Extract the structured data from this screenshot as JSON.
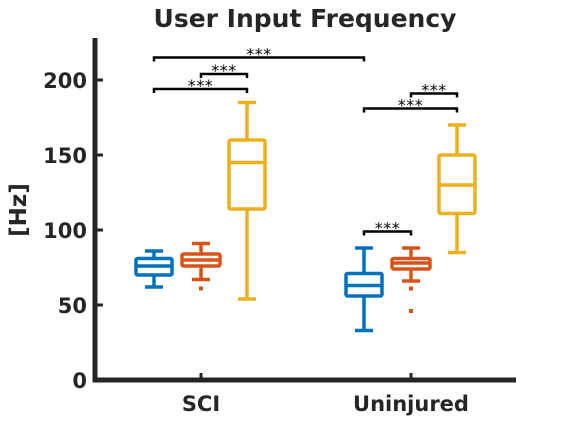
{
  "chart_data": {
    "type": "box",
    "title": "User Input Frequency",
    "xlabel": "",
    "ylabel": "[Hz]",
    "ylim": [
      0,
      228
    ],
    "yticks": [
      0,
      50,
      100,
      150,
      200
    ],
    "categories": [
      "SCI",
      "Uninjured"
    ],
    "series_colors": [
      "#0072BD",
      "#D95319",
      "#EDB120"
    ],
    "groups": [
      {
        "category": "SCI",
        "boxes": [
          {
            "min": 62,
            "q1": 70,
            "median": 76,
            "q3": 81,
            "max": 86,
            "outliers": []
          },
          {
            "min": 67,
            "q1": 76,
            "median": 80,
            "q3": 84,
            "max": 91,
            "outliers": [
              61
            ]
          },
          {
            "min": 54,
            "q1": 114,
            "median": 145,
            "q3": 160,
            "max": 185,
            "outliers": []
          }
        ]
      },
      {
        "category": "Uninjured",
        "boxes": [
          {
            "min": 33,
            "q1": 56,
            "median": 63,
            "q3": 71,
            "max": 88,
            "outliers": []
          },
          {
            "min": 66,
            "q1": 74,
            "median": 78,
            "q3": 81,
            "max": 88,
            "outliers": [
              61,
              46
            ]
          },
          {
            "min": 85,
            "q1": 111,
            "median": 130,
            "q3": 150,
            "max": 170,
            "outliers": []
          }
        ]
      }
    ],
    "significance": [
      {
        "from_group": 0,
        "from_box": 0,
        "to_group": 1,
        "to_box": 0,
        "y": 215,
        "label": "***"
      },
      {
        "from_group": 0,
        "from_box": 1,
        "to_group": 0,
        "to_box": 2,
        "y": 204,
        "label": "***"
      },
      {
        "from_group": 0,
        "from_box": 0,
        "to_group": 0,
        "to_box": 2,
        "y": 194,
        "label": "***"
      },
      {
        "from_group": 1,
        "from_box": 1,
        "to_group": 1,
        "to_box": 2,
        "y": 191,
        "label": "***"
      },
      {
        "from_group": 1,
        "from_box": 0,
        "to_group": 1,
        "to_box": 2,
        "y": 181,
        "label": "***"
      },
      {
        "from_group": 1,
        "from_box": 0,
        "to_group": 1,
        "to_box": 1,
        "y": 99,
        "label": "***"
      }
    ]
  }
}
